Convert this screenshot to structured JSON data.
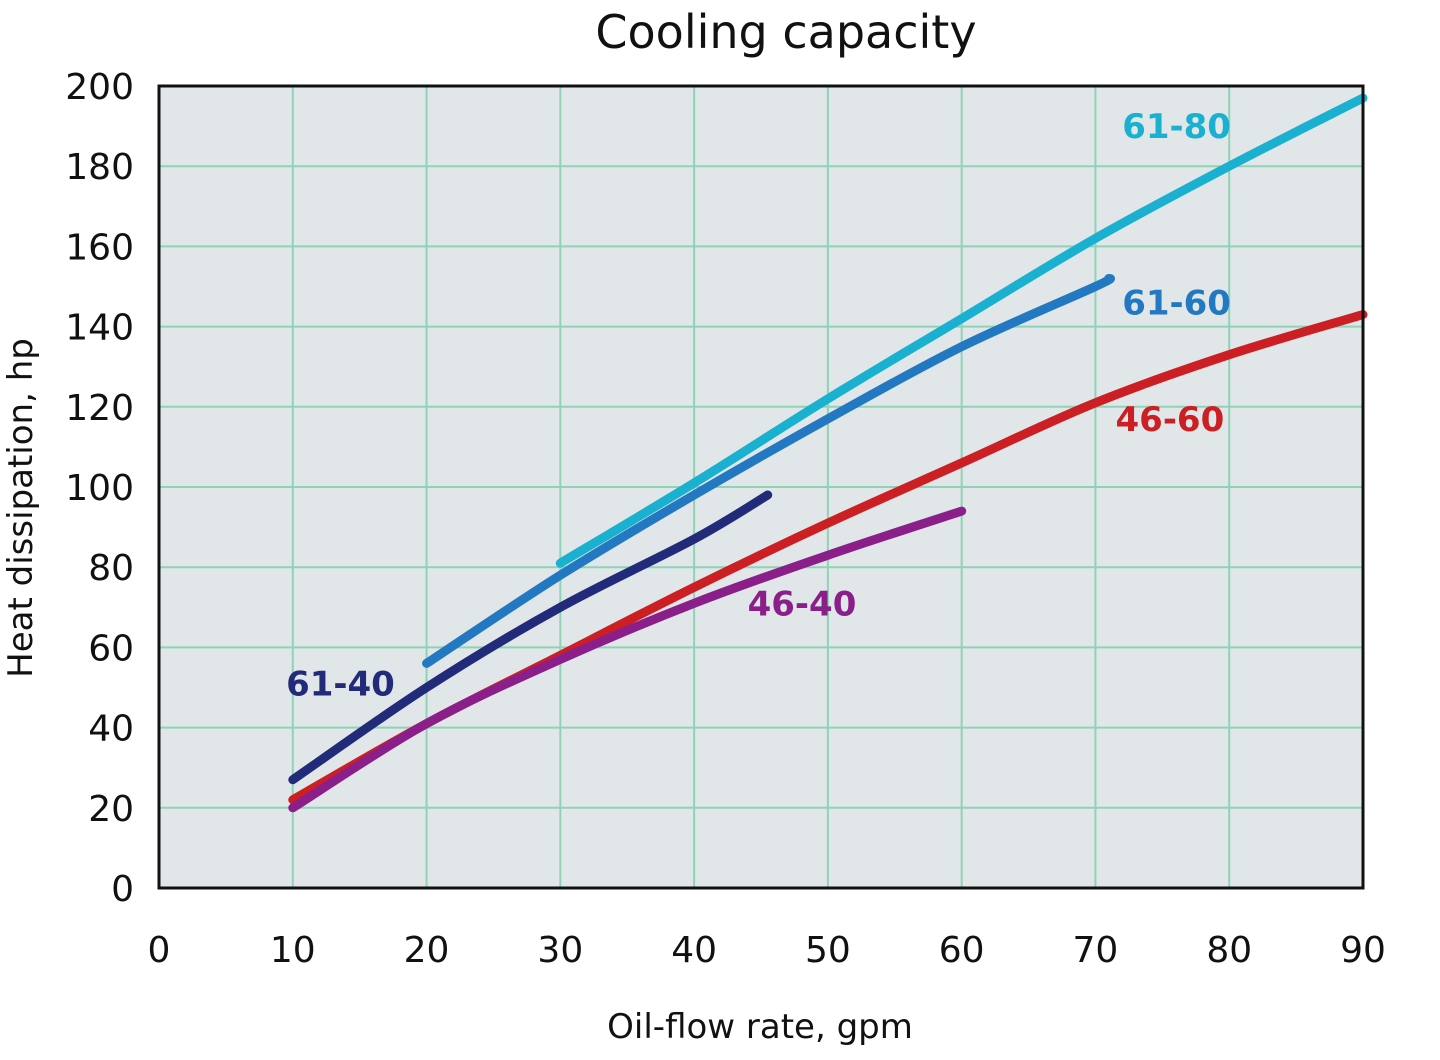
{
  "chart_data": {
    "type": "line",
    "title": "Cooling capacity",
    "xlabel": "Oil-flow rate, gpm",
    "ylabel": "Heat dissipation, hp",
    "xlim": [
      0,
      90
    ],
    "ylim": [
      0,
      200
    ],
    "x_ticks": [
      0,
      10,
      20,
      30,
      40,
      50,
      60,
      70,
      80,
      90
    ],
    "y_ticks": [
      0,
      20,
      40,
      60,
      80,
      100,
      120,
      140,
      160,
      180,
      200
    ],
    "grid": true,
    "legend": "inline labels",
    "colors": {
      "plot_background": "#e1e6e9",
      "grid": "#8fd3b6",
      "axis": "#111111"
    },
    "series": [
      {
        "name": "61-80",
        "color": "#1ab0d0",
        "label_at": [
          72,
          187
        ],
        "points": [
          [
            30,
            81
          ],
          [
            40,
            101
          ],
          [
            50,
            122
          ],
          [
            60,
            142
          ],
          [
            70,
            162
          ],
          [
            80,
            180
          ],
          [
            90,
            197
          ]
        ]
      },
      {
        "name": "61-60",
        "color": "#2279c1",
        "label_at": [
          72,
          143
        ],
        "points": [
          [
            20,
            56
          ],
          [
            30,
            78
          ],
          [
            40,
            98
          ],
          [
            50,
            117
          ],
          [
            60,
            135
          ],
          [
            70,
            150
          ],
          [
            71,
            152
          ]
        ]
      },
      {
        "name": "61-40",
        "color": "#222a7a",
        "label_at": [
          9.5,
          48
        ],
        "points": [
          [
            10,
            27
          ],
          [
            20,
            50
          ],
          [
            30,
            70
          ],
          [
            40,
            87
          ],
          [
            45.5,
            98
          ]
        ]
      },
      {
        "name": "46-60",
        "color": "#cc1f24",
        "label_at": [
          71.5,
          114
        ],
        "points": [
          [
            10,
            22
          ],
          [
            20,
            41
          ],
          [
            30,
            58
          ],
          [
            40,
            75
          ],
          [
            50,
            91
          ],
          [
            60,
            106
          ],
          [
            70,
            121
          ],
          [
            80,
            133
          ],
          [
            90,
            143
          ]
        ]
      },
      {
        "name": "46-40",
        "color": "#8b1f8a",
        "label_at": [
          44,
          68
        ],
        "points": [
          [
            10,
            20
          ],
          [
            20,
            41
          ],
          [
            30,
            57
          ],
          [
            40,
            71
          ],
          [
            50,
            83
          ],
          [
            60,
            94
          ]
        ]
      }
    ]
  }
}
